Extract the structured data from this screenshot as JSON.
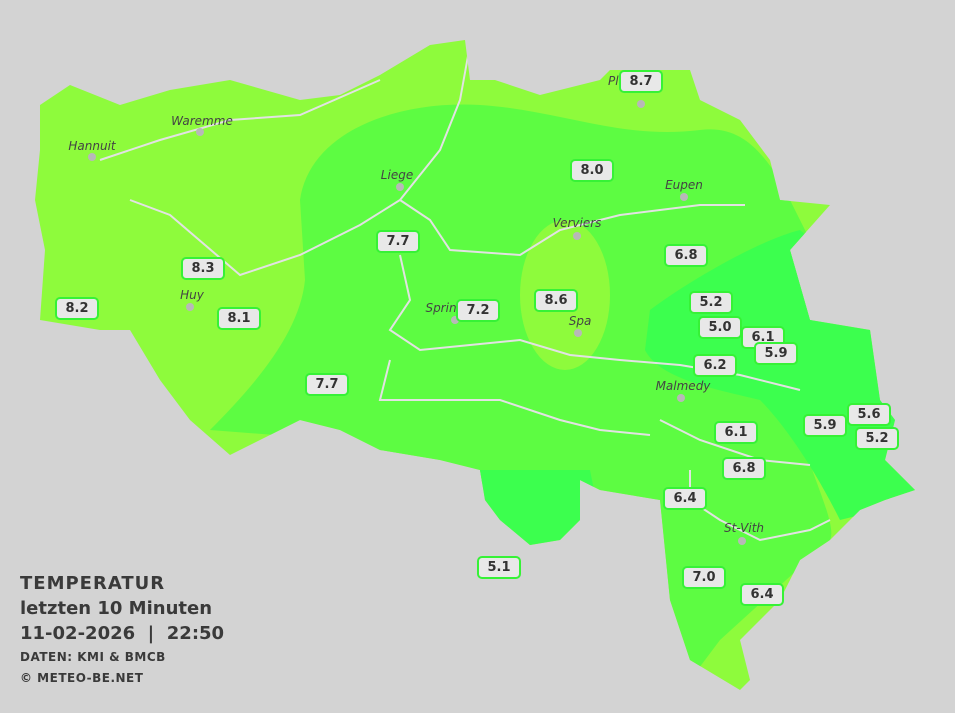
{
  "legend": {
    "title": "TEMPERATUR",
    "period": "letzten 10 Minuten",
    "datetime": "11-02-2026  |  22:50",
    "source": "DATEN: KMI & BMCB",
    "copyright": "© METEO-BE.NET"
  },
  "colors": {
    "background": "#d3d3d3",
    "zone_warm": "#8efb3c",
    "zone_mid": "#5dfc42",
    "zone_cool": "#3cff4e",
    "label_border": "#36f236"
  },
  "cities": [
    "Hannuit",
    "Waremme",
    "Liege",
    "Eupen",
    "Verviers",
    "Huy",
    "Sprin",
    "Spa",
    "Malmedy",
    "St-Vith",
    "Plo"
  ],
  "stations": [
    "8.7",
    "8.0",
    "7.7",
    "8.3",
    "8.2",
    "8.1",
    "7.2",
    "8.6",
    "6.8",
    "5.2",
    "5.0",
    "6.1",
    "5.9",
    "6.2",
    "7.7",
    "6.1",
    "5.9",
    "5.6",
    "5.2",
    "6.8",
    "6.4",
    "5.1",
    "7.0",
    "6.4"
  ]
}
